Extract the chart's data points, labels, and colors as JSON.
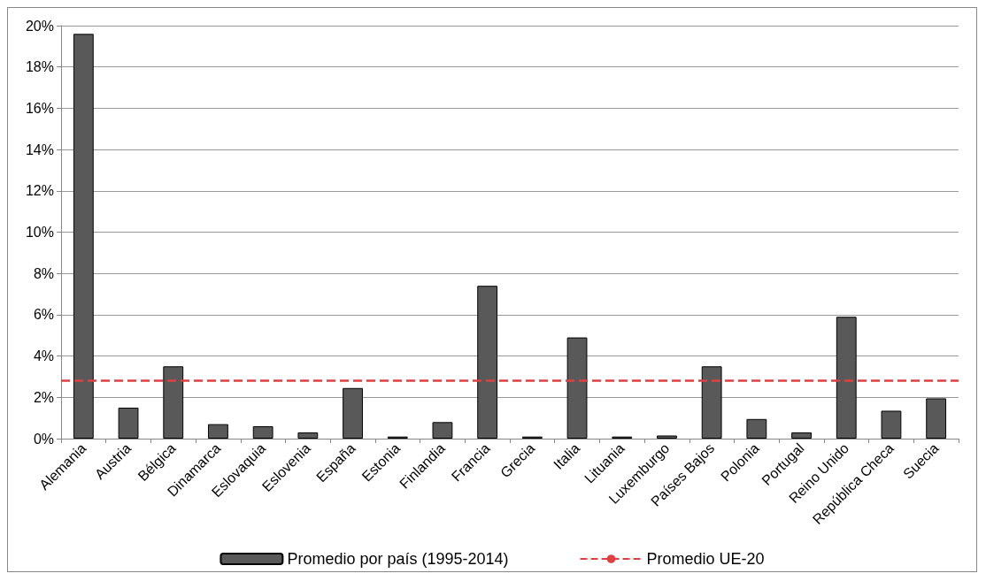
{
  "chart_data": {
    "type": "bar",
    "categories": [
      "Alemania",
      "Austria",
      "Bélgica",
      "Dinamarca",
      "Eslovaquia",
      "Eslovenia",
      "España",
      "Estonia",
      "Finlandia",
      "Francia",
      "Grecia",
      "Italia",
      "Lituania",
      "Luxemburgo",
      "Países Bajos",
      "Polonia",
      "Portugal",
      "Reino Unido",
      "República Checa",
      "Suecia"
    ],
    "series": [
      {
        "name": "Promedio por país (1995-2014)",
        "color": "#595959",
        "values": [
          19.6,
          1.5,
          3.5,
          0.7,
          0.6,
          0.3,
          2.45,
          0.1,
          0.8,
          7.4,
          0.1,
          4.9,
          0.1,
          0.15,
          3.5,
          0.95,
          0.3,
          5.9,
          1.35,
          1.95
        ]
      }
    ],
    "ref_lines": [
      {
        "axis": "y",
        "value": 2.8,
        "label": "Promedio UE-20",
        "color": "#e04040",
        "line_style": "dashed"
      }
    ],
    "ylim": [
      0,
      20
    ],
    "yticks": [
      {
        "value": 0,
        "label": "0%"
      },
      {
        "value": 2,
        "label": "2%"
      },
      {
        "value": 4,
        "label": "4%"
      },
      {
        "value": 6,
        "label": "6%"
      },
      {
        "value": 8,
        "label": "8%"
      },
      {
        "value": 10,
        "label": "10%"
      },
      {
        "value": 12,
        "label": "12%"
      },
      {
        "value": 14,
        "label": "14%"
      },
      {
        "value": 16,
        "label": "16%"
      },
      {
        "value": 18,
        "label": "18%"
      },
      {
        "value": 20,
        "label": "20%"
      }
    ],
    "grid": "y",
    "legend": "bottom"
  }
}
